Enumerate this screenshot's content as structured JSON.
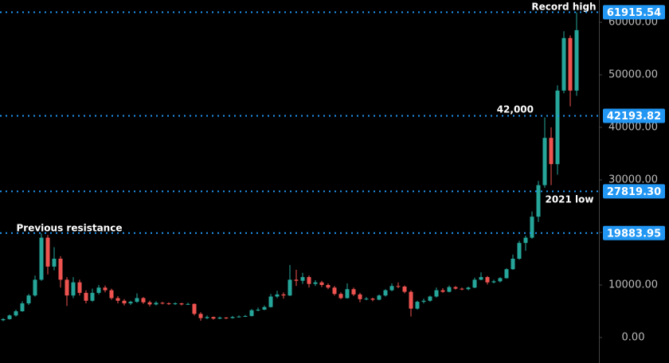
{
  "chart_data": {
    "type": "candlestick",
    "up_color": "#26a69a",
    "down_color": "#ef5350",
    "level_color": "#2196f3",
    "ylim": [
      -4850,
      64240
    ],
    "yticks": [
      {
        "value": 0,
        "label": "0.00"
      },
      {
        "value": 10000,
        "label": "10000.00"
      },
      {
        "value": 20000,
        "label": "20000.00"
      },
      {
        "value": 30000,
        "label": "30000.00"
      },
      {
        "value": 40000,
        "label": "40000.00"
      },
      {
        "value": 50000,
        "label": "50000.00"
      },
      {
        "value": 60000,
        "label": "60000.00"
      }
    ],
    "levels": [
      {
        "value": 61915.54,
        "label": "61915.54"
      },
      {
        "value": 42193.82,
        "label": "42193.82"
      },
      {
        "value": 27819.3,
        "label": "27819.30"
      },
      {
        "value": 19883.95,
        "label": "19883.95"
      }
    ],
    "annotations": [
      "Record high",
      "42,000",
      "2021 low",
      "Previous resistance"
    ],
    "open": [
      3300,
      3500,
      4200,
      5000,
      6500,
      8000,
      11000,
      19000,
      13500,
      15000,
      11000,
      8000,
      10500,
      8500,
      7000,
      8500,
      9500,
      9000,
      7500,
      7000,
      6500,
      6800,
      7500,
      6700,
      6300,
      6600,
      6500,
      6400,
      6500,
      6300,
      6400,
      4500,
      3700,
      3900,
      3600,
      3800,
      3700,
      3900,
      4000,
      4100,
      5200,
      5300,
      5800,
      7800,
      8200,
      8000,
      11000,
      10800,
      11500,
      10200,
      10500,
      10000,
      9500,
      8300,
      7500,
      9200,
      8200,
      7300,
      7400,
      7200,
      8000,
      9000,
      9800,
      9700,
      8700,
      5500,
      6800,
      7000,
      7800,
      9000,
      8700,
      9600,
      9300,
      9200,
      9500,
      11000,
      11500,
      10500,
      10700,
      11300,
      13000,
      15000,
      18000,
      19000,
      23000,
      29000,
      38000,
      33000,
      47000,
      57000,
      47000
    ],
    "high": [
      3700,
      4400,
      5300,
      6900,
      8300,
      11800,
      19800,
      19500,
      17200,
      15500,
      11500,
      11500,
      11000,
      9000,
      9300,
      10000,
      9900,
      9300,
      7900,
      7300,
      7000,
      8400,
      7700,
      7000,
      6900,
      6800,
      6700,
      6700,
      6600,
      6600,
      6500,
      4800,
      4200,
      4000,
      4000,
      3900,
      4100,
      4200,
      4300,
      5400,
      5700,
      6100,
      8300,
      8900,
      8600,
      13800,
      12900,
      12300,
      11800,
      10900,
      10800,
      10300,
      9800,
      8600,
      10300,
      9500,
      8500,
      7700,
      7600,
      8200,
      9200,
      10300,
      10500,
      9900,
      9000,
      7000,
      7400,
      8000,
      9500,
      9400,
      9900,
      9800,
      9500,
      9700,
      11400,
      12400,
      11700,
      11000,
      11500,
      13200,
      15800,
      18400,
      19400,
      24000,
      29800,
      41900,
      40000,
      48000,
      58300,
      57500,
      61900
    ],
    "low": [
      3100,
      3400,
      4000,
      4900,
      6200,
      7800,
      10800,
      12000,
      12800,
      9500,
      6000,
      7500,
      8000,
      6500,
      6800,
      8200,
      8600,
      7200,
      6500,
      6100,
      6200,
      6600,
      6400,
      5900,
      6100,
      6300,
      6200,
      6200,
      6100,
      6200,
      4200,
      3200,
      3500,
      3400,
      3500,
      3500,
      3600,
      3800,
      3900,
      4000,
      5000,
      5200,
      5700,
      7500,
      7400,
      7900,
      9800,
      10200,
      9500,
      9800,
      9600,
      9200,
      8000,
      7300,
      7400,
      7900,
      6700,
      7100,
      6900,
      7100,
      7800,
      8800,
      9400,
      8400,
      4000,
      5300,
      6500,
      6800,
      7600,
      8500,
      8600,
      9100,
      9000,
      9000,
      9400,
      10900,
      10100,
      10300,
      10500,
      11200,
      12900,
      14800,
      16500,
      18800,
      22000,
      28500,
      29000,
      31000,
      46500,
      44000,
      46000
    ],
    "close": [
      3500,
      4200,
      5000,
      6500,
      8000,
      11000,
      19000,
      13500,
      15000,
      11000,
      8000,
      10500,
      8500,
      7000,
      8500,
      9500,
      9000,
      7500,
      7000,
      6500,
      6800,
      7500,
      6700,
      6300,
      6600,
      6500,
      6400,
      6500,
      6300,
      6400,
      4500,
      3700,
      3900,
      3600,
      3800,
      3700,
      3900,
      4000,
      4100,
      5200,
      5300,
      5800,
      7800,
      8200,
      8000,
      11000,
      10800,
      11500,
      10200,
      10500,
      10000,
      9500,
      8300,
      7500,
      9200,
      8200,
      7300,
      7400,
      7200,
      8000,
      9000,
      9800,
      9700,
      8700,
      5500,
      6800,
      7000,
      7800,
      9000,
      8700,
      9600,
      9300,
      9200,
      9500,
      11000,
      11500,
      10500,
      10700,
      11300,
      13000,
      15000,
      18000,
      19000,
      23000,
      29000,
      38000,
      33000,
      47000,
      57000,
      47000,
      58500
    ]
  }
}
